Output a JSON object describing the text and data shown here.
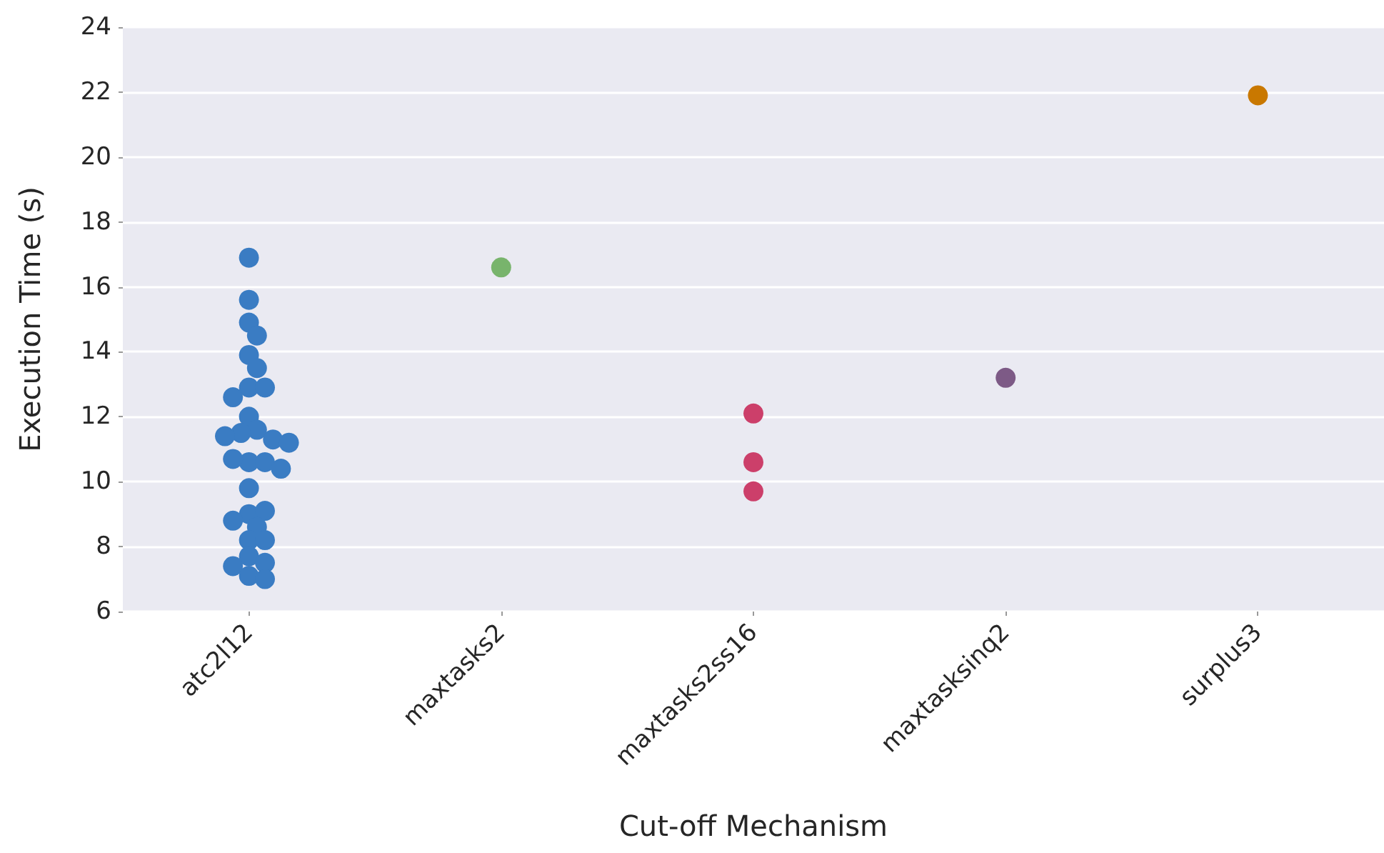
{
  "chart_data": {
    "type": "scatter",
    "xlabel": "Cut-off Mechanism",
    "ylabel": "Execution Time (s)",
    "categories": [
      "atc2l12",
      "maxtasks2",
      "maxtasks2ss16",
      "maxtasksinq2",
      "surplus3"
    ],
    "ylim": [
      6,
      24
    ],
    "yticks": [
      6,
      8,
      10,
      12,
      14,
      16,
      18,
      20,
      22,
      24
    ],
    "grid": "y",
    "marker": "circle",
    "series": [
      {
        "color": "#3a7cc3",
        "x": [
          "atc2l12",
          "atc2l12",
          "atc2l12",
          "atc2l12",
          "atc2l12",
          "atc2l12",
          "atc2l12",
          "atc2l12",
          "atc2l12",
          "atc2l12",
          "atc2l12",
          "atc2l12",
          "atc2l12",
          "atc2l12",
          "atc2l12",
          "atc2l12",
          "atc2l12",
          "atc2l12",
          "atc2l12",
          "atc2l12",
          "atc2l12",
          "atc2l12",
          "atc2l12",
          "atc2l12",
          "atc2l12",
          "atc2l12",
          "atc2l12",
          "atc2l12",
          "atc2l12",
          "atc2l12",
          "atc2l12"
        ],
        "values": [
          16.9,
          15.6,
          14.9,
          14.5,
          13.9,
          13.5,
          12.9,
          12.9,
          12.6,
          12.0,
          11.6,
          11.5,
          11.3,
          11.4,
          11.2,
          10.6,
          10.6,
          10.7,
          10.4,
          9.8,
          9.0,
          9.1,
          8.8,
          8.6,
          8.2,
          8.2,
          7.7,
          7.5,
          7.4,
          7.1,
          7.0
        ]
      },
      {
        "color": "#78b46c",
        "x": [
          "maxtasks2"
        ],
        "values": [
          16.6
        ]
      },
      {
        "color": "#cc3f6a",
        "x": [
          "maxtasks2ss16",
          "maxtasks2ss16",
          "maxtasks2ss16"
        ],
        "values": [
          12.1,
          10.6,
          9.7
        ]
      },
      {
        "color": "#7d5a86",
        "x": [
          "maxtasksinq2"
        ],
        "values": [
          13.2
        ]
      },
      {
        "color": "#c97800",
        "x": [
          "surplus3"
        ],
        "values": [
          21.9
        ]
      }
    ]
  }
}
